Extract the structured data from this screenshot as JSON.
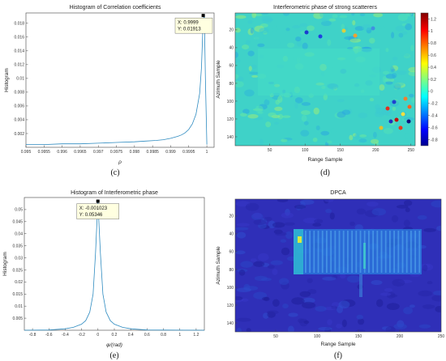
{
  "chart_data": [
    {
      "id": "c",
      "type": "line",
      "caption": "(c)",
      "title": "Histogram of Correlation coefficients",
      "xlabel": "ρ",
      "ylabel": "Histogram",
      "xlim": [
        0.995,
        1.0002
      ],
      "ylim": [
        0,
        0.0195
      ],
      "xticks": [
        0.995,
        0.9955,
        0.996,
        0.9965,
        0.997,
        0.9975,
        0.998,
        0.9985,
        0.999,
        0.9995,
        1
      ],
      "xtick_labels": [
        "0.995",
        "0.9955",
        "0.996",
        "0.9965",
        "0.997",
        "0.9975",
        "0.998",
        "0.9985",
        "0.999",
        "0.9995",
        "1"
      ],
      "yticks": [
        0.002,
        0.004,
        0.006,
        0.008,
        0.01,
        0.012,
        0.014,
        0.016,
        0.018
      ],
      "ytick_labels": [
        "0.002",
        "0.004",
        "0.006",
        "0.008",
        "0.01",
        "0.012",
        "0.014",
        "0.016",
        "0.018"
      ],
      "color": "#2e8bc0",
      "x": [
        0.995,
        0.9955,
        0.996,
        0.9965,
        0.997,
        0.9975,
        0.998,
        0.9983,
        0.9986,
        0.9988,
        0.999,
        0.9992,
        0.9993,
        0.9994,
        0.9995,
        0.9996,
        0.9997,
        0.9998,
        0.99985,
        0.9999,
        0.99993,
        0.99996,
        1.0
      ],
      "y": [
        0.0004,
        0.0004,
        0.0005,
        0.0005,
        0.0006,
        0.0007,
        0.0008,
        0.0009,
        0.001,
        0.0011,
        0.0013,
        0.0016,
        0.0018,
        0.0021,
        0.0026,
        0.0034,
        0.0048,
        0.0078,
        0.0115,
        0.0185,
        0.0191,
        0.01,
        0.0004
      ],
      "datatip": {
        "x": 0.9999,
        "y": 0.01913,
        "x_text": "X: 0.9999",
        "y_text": "Y: 0.01913"
      }
    },
    {
      "id": "d",
      "type": "heatmap",
      "caption": "(d)",
      "title": "Interferometric phase of strong scatterers",
      "xlabel": "Range Sample",
      "ylabel": "Azimuth Sample",
      "xlim": [
        1,
        256
      ],
      "ylim": [
        1,
        150
      ],
      "xticks": [
        50,
        100,
        150,
        200,
        250
      ],
      "xtick_labels": [
        "50",
        "100",
        "150",
        "200",
        "250"
      ],
      "yticks": [
        20,
        40,
        60,
        80,
        100,
        120,
        140
      ],
      "ytick_labels": [
        "20",
        "40",
        "60",
        "80",
        "100",
        "120",
        "140"
      ],
      "colorbar": {
        "min": -0.9,
        "max": 1.3,
        "ticks": [
          1.2,
          1,
          0.8,
          0.6,
          0.4,
          0.2,
          0,
          -0.2,
          -0.4,
          -0.6,
          -0.8
        ],
        "tick_labels": [
          "1.2",
          "1",
          "0.8",
          "0.6",
          "0.4",
          "0.2",
          "0",
          "-0.2",
          "-0.4",
          "-0.6",
          "-0.8"
        ]
      }
    },
    {
      "id": "e",
      "type": "line",
      "caption": "(e)",
      "title": "Histogram of Interferometric phase",
      "xlabel": "φ/(rad)",
      "ylabel": "Histogram",
      "xlim": [
        -0.9,
        1.3
      ],
      "ylim": [
        0,
        0.055
      ],
      "xticks": [
        -0.8,
        -0.6,
        -0.4,
        -0.2,
        0,
        0.2,
        0.4,
        0.6,
        0.8,
        1,
        1.2
      ],
      "xtick_labels": [
        "-0.8",
        "-0.6",
        "-0.4",
        "-0.2",
        "0",
        "0.2",
        "0.4",
        "0.6",
        "0.8",
        "1",
        "1.2"
      ],
      "yticks": [
        0.005,
        0.01,
        0.015,
        0.02,
        0.025,
        0.03,
        0.035,
        0.04,
        0.045,
        0.05
      ],
      "ytick_labels": [
        "0.005",
        "0.01",
        "0.015",
        "0.02",
        "0.025",
        "0.03",
        "0.035",
        "0.04",
        "0.045",
        "0.05"
      ],
      "color": "#2e8bc0",
      "x": [
        -0.9,
        -0.6,
        -0.4,
        -0.3,
        -0.2,
        -0.15,
        -0.1,
        -0.06,
        -0.03,
        -0.001,
        0.03,
        0.06,
        0.1,
        0.15,
        0.2,
        0.3,
        0.4,
        0.6,
        1.3
      ],
      "y": [
        0,
        0.0001,
        0.0006,
        0.0012,
        0.0025,
        0.004,
        0.0075,
        0.015,
        0.032,
        0.05346,
        0.032,
        0.015,
        0.0075,
        0.004,
        0.0025,
        0.0012,
        0.0006,
        0.0001,
        0
      ],
      "datatip": {
        "x": -0.001023,
        "y": 0.05346,
        "x_text": "X: -0.001023",
        "y_text": "Y: 0.05346"
      }
    },
    {
      "id": "f",
      "type": "heatmap",
      "caption": "(f)",
      "title": "DPCA",
      "xlabel": "Range Sample",
      "ylabel": "Azimuth Sample",
      "xlim": [
        1,
        250
      ],
      "ylim": [
        1,
        150
      ],
      "xticks": [
        50,
        100,
        150,
        200,
        250
      ],
      "xtick_labels": [
        "50",
        "100",
        "150",
        "200",
        "250"
      ],
      "yticks": [
        20,
        40,
        60,
        80,
        100,
        120,
        140
      ],
      "ytick_labels": [
        "20",
        "40",
        "60",
        "80",
        "100",
        "120",
        "140"
      ]
    }
  ]
}
